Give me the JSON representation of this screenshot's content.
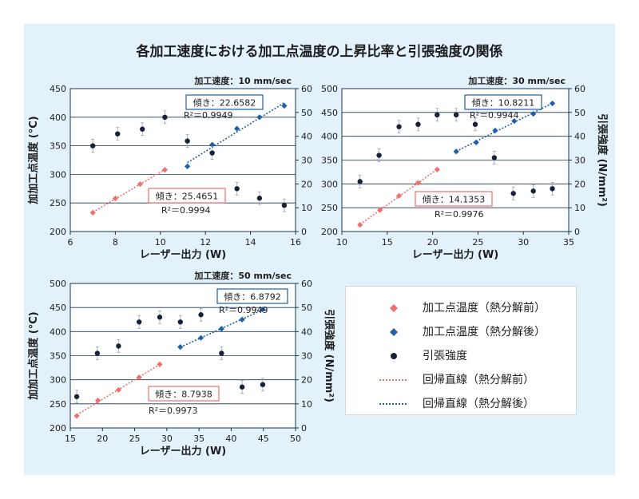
{
  "title": "各加工速度における加工点温度の上昇比率と引張強度の関係",
  "legend": {
    "items": [
      {
        "label": "加工点温度（熱分解前）",
        "kind": "diamond",
        "color": "#f07070"
      },
      {
        "label": "加工点温度（熱分解後）",
        "kind": "diamond",
        "color": "#1e5fa8"
      },
      {
        "label": "引張強度",
        "kind": "dot",
        "color": "#15233a"
      },
      {
        "label": "回帰直線（熱分解前）",
        "kind": "dotted",
        "color": "#f07070"
      },
      {
        "label": "回帰直線（熱分解後）",
        "kind": "dotted",
        "color": "#1e5fa8"
      }
    ]
  },
  "colors": {
    "before": "#f07070",
    "after": "#1e5fa8",
    "strength": "#15233a",
    "grid": "#1a3550",
    "panel": "#e3f1fb"
  },
  "chart_data": [
    {
      "type": "scatter",
      "header": "加工速度：10 mm/sec",
      "xlabel": "レーザー出力 (W)",
      "ylabel_left": "加加工点温度 (°C)",
      "ylabel_right": "",
      "xlim": [
        6,
        16
      ],
      "xticks": [
        6,
        8,
        10,
        12,
        14,
        16
      ],
      "ylim_left": [
        200,
        450
      ],
      "yticks_left": [
        200,
        250,
        300,
        350,
        400,
        450
      ],
      "ylim_right": [
        0,
        60
      ],
      "yticks_right": [
        0,
        10,
        20,
        30,
        40,
        50,
        60
      ],
      "series": [
        {
          "key": "before",
          "x": [
            7.0,
            8.0,
            9.1,
            10.2
          ],
          "y": [
            233,
            258,
            283,
            308
          ]
        },
        {
          "key": "after",
          "x": [
            11.2,
            12.3,
            13.4,
            14.4,
            15.5
          ],
          "y": [
            314,
            352,
            380,
            400,
            420
          ]
        },
        {
          "key": "strength",
          "x": [
            7.0,
            8.1,
            9.2,
            10.2,
            11.2,
            12.3,
            13.4,
            14.4,
            15.5
          ],
          "y": [
            36,
            41,
            43,
            48,
            38,
            33,
            18,
            14,
            11
          ]
        }
      ],
      "fits": [
        {
          "key": "after",
          "slope_label": "傾き：22.6582",
          "r2": "R²＝0.9949"
        },
        {
          "key": "before",
          "slope_label": "傾き：25.4651",
          "r2": "R²＝0.9994"
        }
      ]
    },
    {
      "type": "scatter",
      "header": "加工速度：30 mm/sec",
      "xlabel": "レーザー出力 (W)",
      "ylabel_left": "",
      "ylabel_right": "引張強度 (N/mm²)",
      "xlim": [
        10,
        35
      ],
      "xticks": [
        10,
        15,
        20,
        25,
        30,
        35
      ],
      "ylim_left": [
        200,
        500
      ],
      "yticks_left": [
        200,
        250,
        300,
        350,
        400,
        450,
        500
      ],
      "ylim_right": [
        0,
        60
      ],
      "yticks_right": [
        0,
        10,
        20,
        30,
        40,
        50,
        60
      ],
      "series": [
        {
          "key": "before",
          "x": [
            12.0,
            14.2,
            16.3,
            18.4,
            20.5
          ],
          "y": [
            214,
            245,
            275,
            302,
            330
          ]
        },
        {
          "key": "after",
          "x": [
            22.6,
            24.8,
            26.9,
            29.0,
            31.1,
            33.2
          ],
          "y": [
            368,
            387,
            412,
            432,
            447,
            469
          ]
        },
        {
          "key": "strength",
          "x": [
            12.0,
            14.1,
            16.3,
            18.4,
            20.5,
            22.6,
            24.7,
            26.8,
            28.9,
            31.1,
            33.2
          ],
          "y": [
            21,
            32,
            44,
            45,
            49,
            49,
            45,
            31,
            16,
            17,
            18
          ]
        }
      ],
      "fits": [
        {
          "key": "after",
          "slope_label": "傾き：10.8211",
          "r2": "R²＝0.9944"
        },
        {
          "key": "before",
          "slope_label": "傾き：14.1353",
          "r2": "R²＝0.9976"
        }
      ]
    },
    {
      "type": "scatter",
      "header": "加工速度：50 mm/sec",
      "xlabel": "レーザー出力 (W)",
      "ylabel_left": "加加工点温度 (°C)",
      "ylabel_right": "引張強度 (N/mm²)",
      "xlim": [
        15,
        50
      ],
      "xticks": [
        15,
        20,
        25,
        30,
        35,
        40,
        45,
        50
      ],
      "ylim_left": [
        200,
        500
      ],
      "yticks_left": [
        200,
        250,
        300,
        350,
        400,
        450,
        500
      ],
      "ylim_right": [
        0,
        60
      ],
      "yticks_right": [
        0,
        10,
        20,
        30,
        40,
        50,
        60
      ],
      "series": [
        {
          "key": "before",
          "x": [
            16.0,
            19.3,
            22.5,
            25.7,
            28.9
          ],
          "y": [
            225,
            257,
            279,
            305,
            332
          ]
        },
        {
          "key": "after",
          "x": [
            32.1,
            35.3,
            38.5,
            41.7,
            44.9
          ],
          "y": [
            368,
            387,
            406,
            425,
            446
          ]
        },
        {
          "key": "strength",
          "x": [
            16.0,
            19.2,
            22.5,
            25.7,
            28.9,
            32.1,
            35.3,
            38.5,
            41.7,
            44.9
          ],
          "y": [
            13,
            31,
            34,
            44,
            46,
            44,
            47,
            31,
            17,
            18
          ]
        }
      ],
      "fits": [
        {
          "key": "after",
          "slope_label": "傾き：6.8792",
          "r2": "R²＝0.9949"
        },
        {
          "key": "before",
          "slope_label": "傾き：8.7938",
          "r2": "R²＝0.9973"
        }
      ]
    }
  ]
}
